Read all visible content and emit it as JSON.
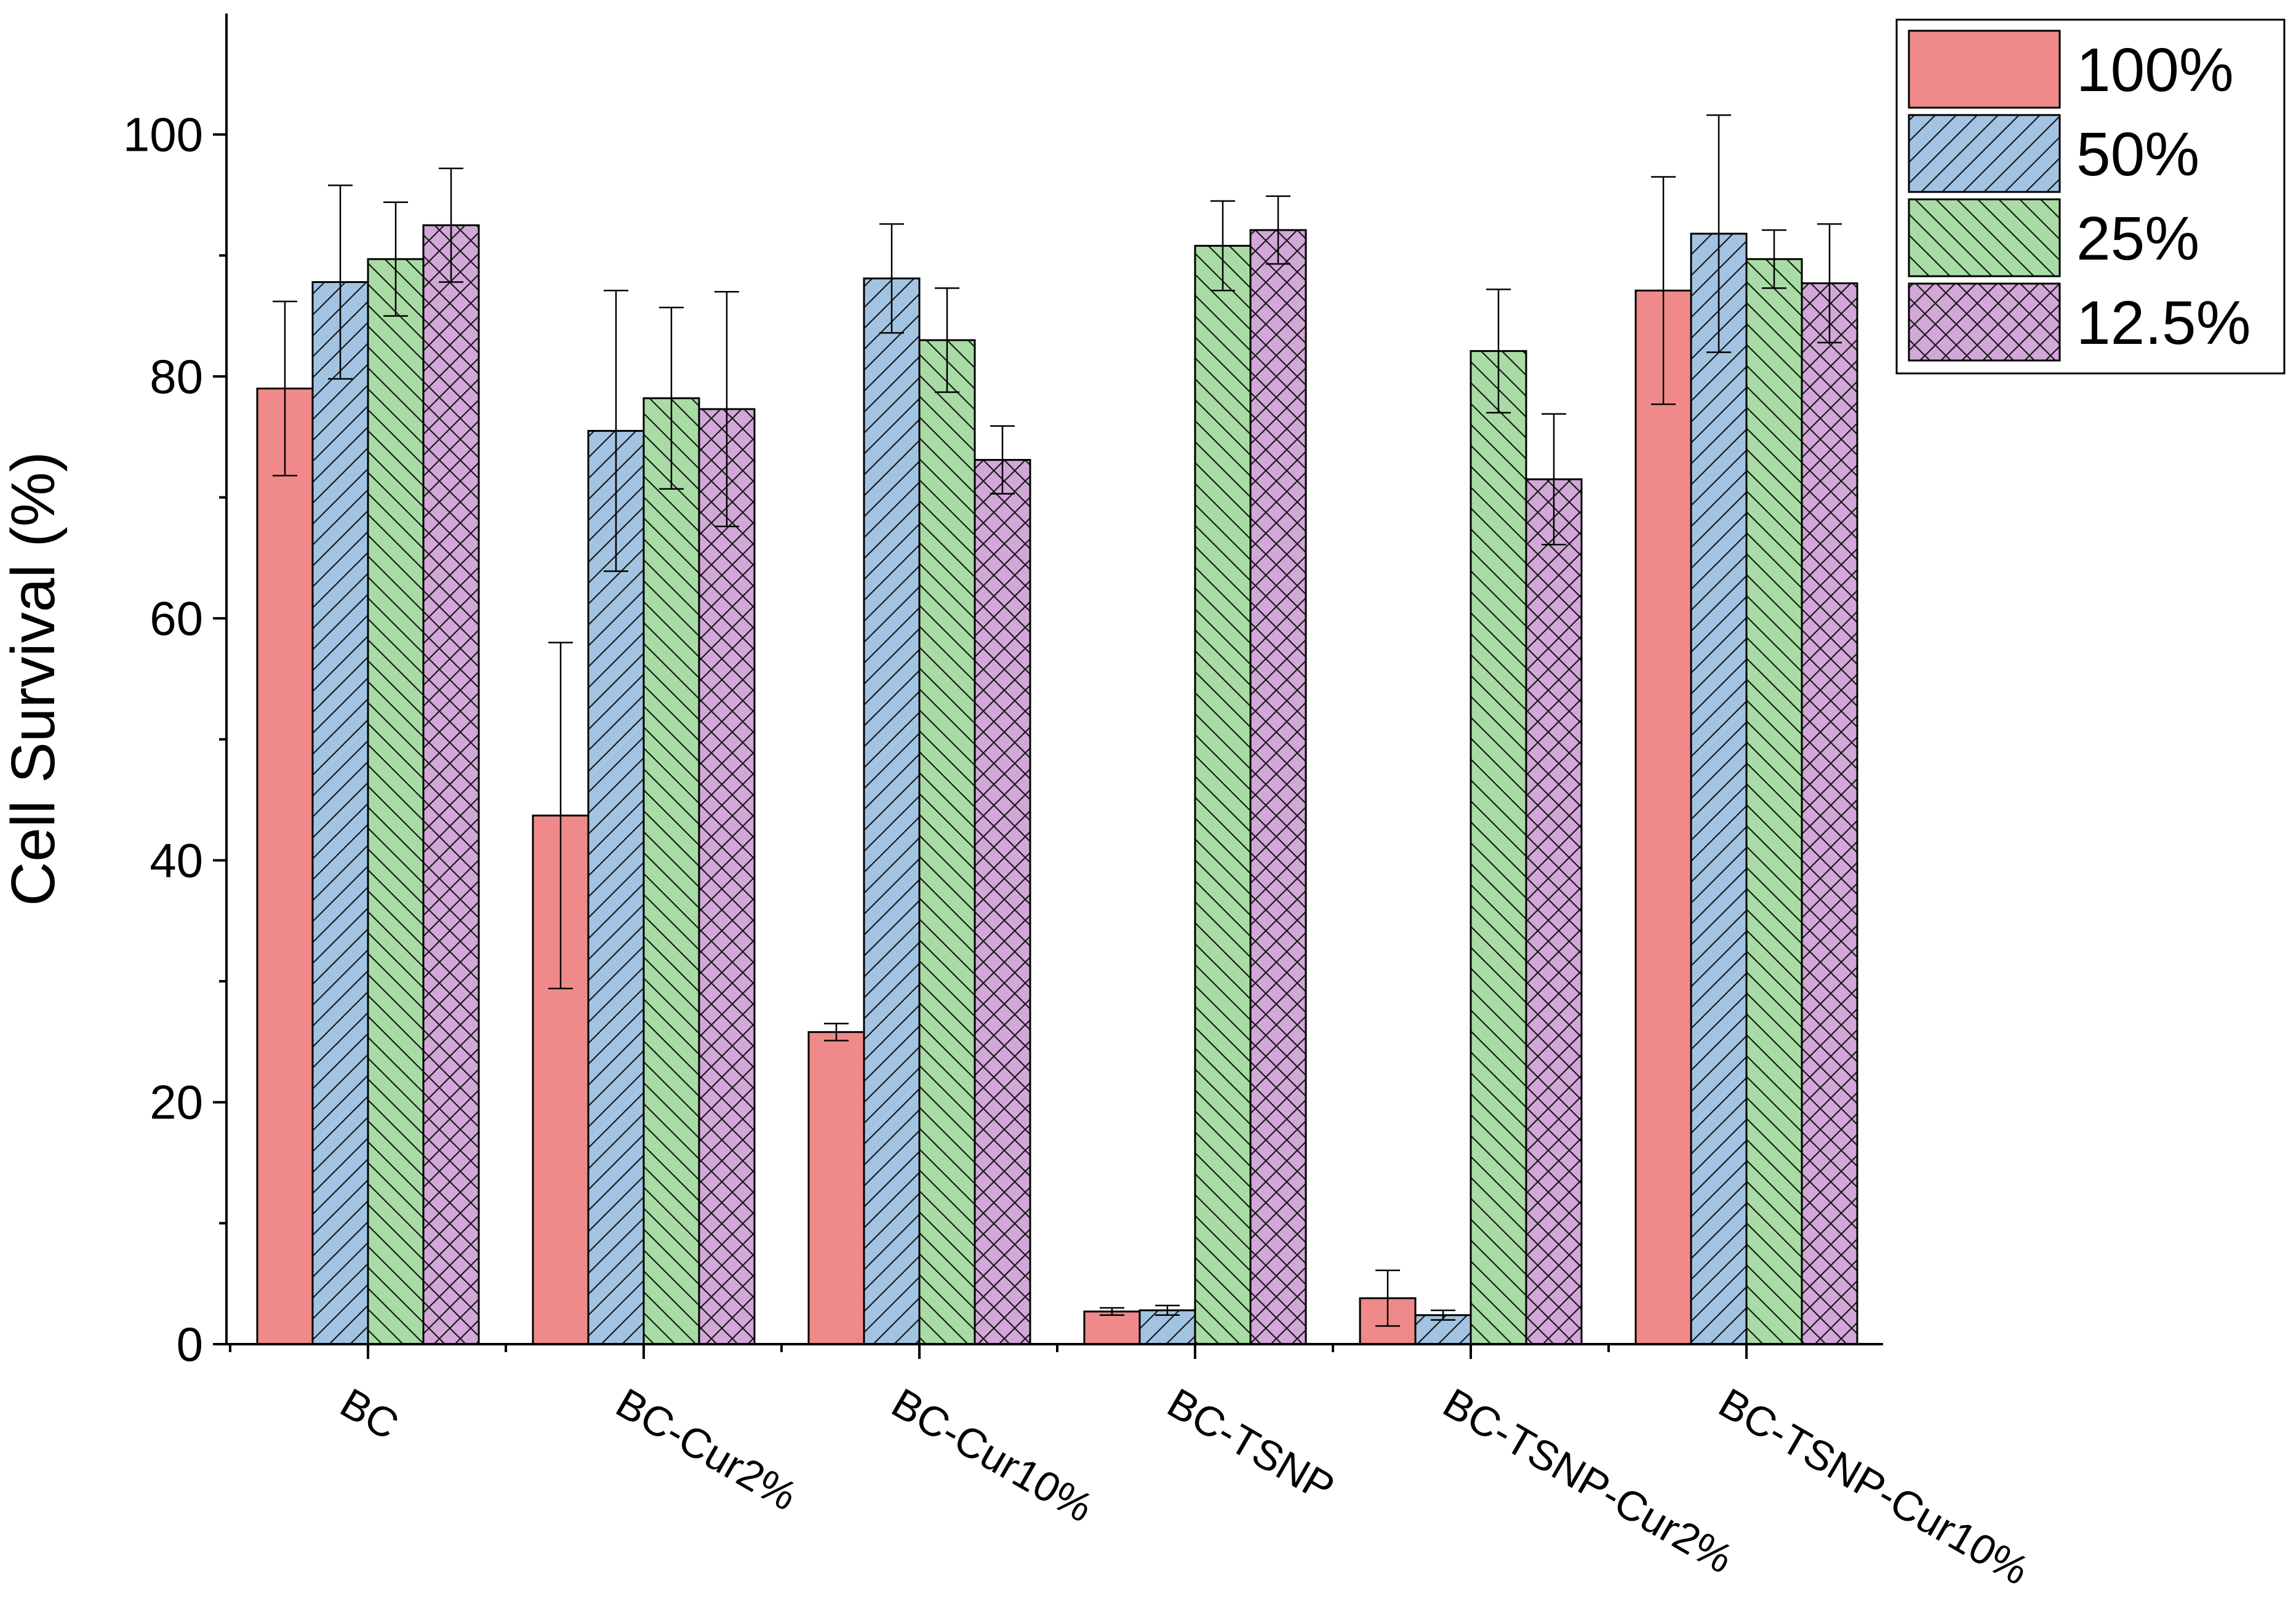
{
  "chart_data": {
    "type": "bar",
    "title": "",
    "xlabel": "",
    "ylabel": "Cell Survival (%)",
    "ylim": [
      0,
      110
    ],
    "yticks": [
      0,
      20,
      40,
      60,
      80,
      100
    ],
    "categories": [
      "BC",
      "BC-Cur2%",
      "BC-Cur10%",
      "BC-TSNP",
      "BC-TSNP-Cur2%",
      "BC-TSNP-Cur10%"
    ],
    "legend_position": "top-right",
    "series": [
      {
        "name": "100%",
        "color": "#F08A8A",
        "pattern": "solid",
        "values": [
          79.0,
          43.7,
          25.8,
          2.7,
          3.8,
          87.1
        ],
        "errors": [
          7.2,
          14.3,
          0.7,
          0.3,
          2.3,
          9.4
        ]
      },
      {
        "name": "50%",
        "color": "#A2C4E2",
        "pattern": "diagonal",
        "values": [
          87.8,
          75.5,
          88.1,
          2.8,
          2.4,
          91.8
        ],
        "errors": [
          8.0,
          11.6,
          4.5,
          0.4,
          0.4,
          9.8
        ]
      },
      {
        "name": "25%",
        "color": "#A8DCA4",
        "pattern": "backdiagonal",
        "values": [
          89.7,
          78.2,
          83.0,
          90.8,
          82.1,
          89.7
        ],
        "errors": [
          4.7,
          7.5,
          4.3,
          3.7,
          5.1,
          2.4
        ]
      },
      {
        "name": "12.5%",
        "color": "#D2A8D8",
        "pattern": "crosshatch",
        "values": [
          92.5,
          77.3,
          73.1,
          92.1,
          71.5,
          87.7
        ],
        "errors": [
          4.7,
          9.7,
          2.8,
          2.8,
          5.4,
          4.9
        ]
      }
    ]
  }
}
